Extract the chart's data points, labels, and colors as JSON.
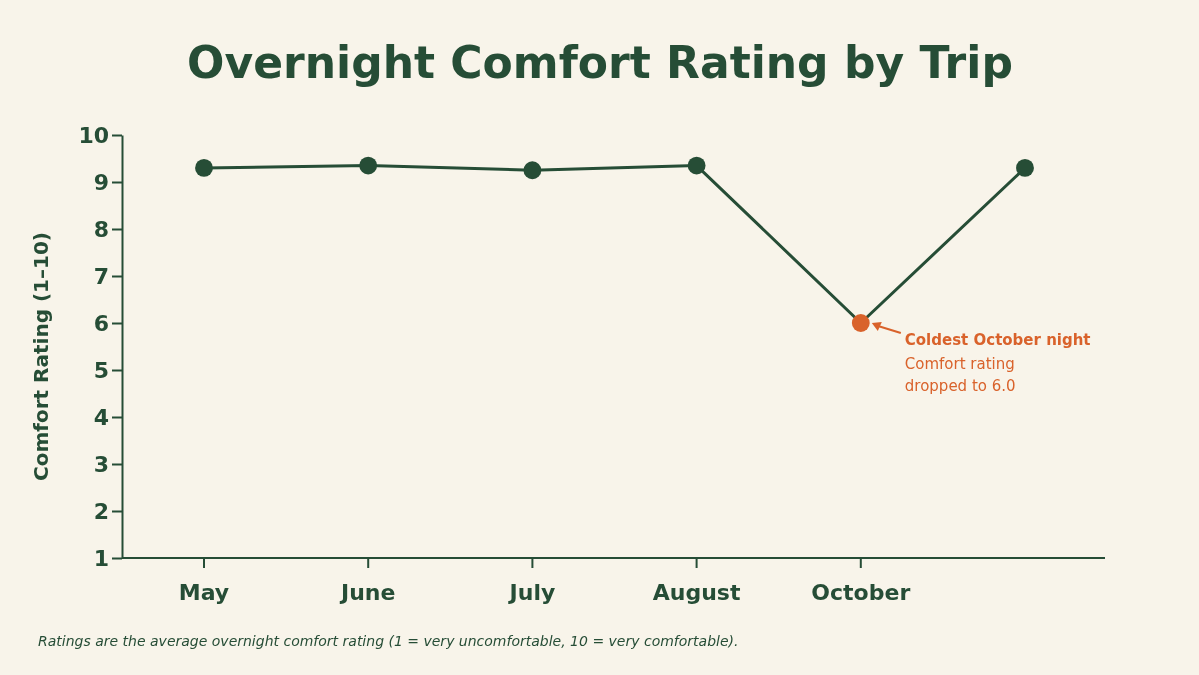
{
  "chart_data": {
    "type": "line",
    "title": "Overnight Comfort Rating by Trip",
    "ylabel": "Comfort Rating (1–10)",
    "categories": [
      "May",
      "June",
      "July",
      "August",
      "October",
      null
    ],
    "ylim": [
      1,
      10
    ],
    "yticks": [
      1,
      2,
      3,
      4,
      5,
      6,
      7,
      8,
      9,
      10
    ],
    "series": [
      {
        "color": "#264d36",
        "colors": [
          "#264d36",
          "#264d36",
          "#264d36",
          "#264d36",
          "#d9622b",
          "#264d36"
        ],
        "values": [
          9.3,
          9.35,
          9.25,
          9.35,
          6.0,
          9.3
        ]
      }
    ],
    "marker": "circle",
    "line_style": "solid",
    "grid": false,
    "annotations": [
      {
        "text": "Coldest October night",
        "x": "October",
        "y": 6.0
      },
      "Comfort rating dropped to 6.0",
      "Ratings are the average overnight comfort rating (1 = very uncomfortable, 10 = very comfortable)."
    ]
  }
}
